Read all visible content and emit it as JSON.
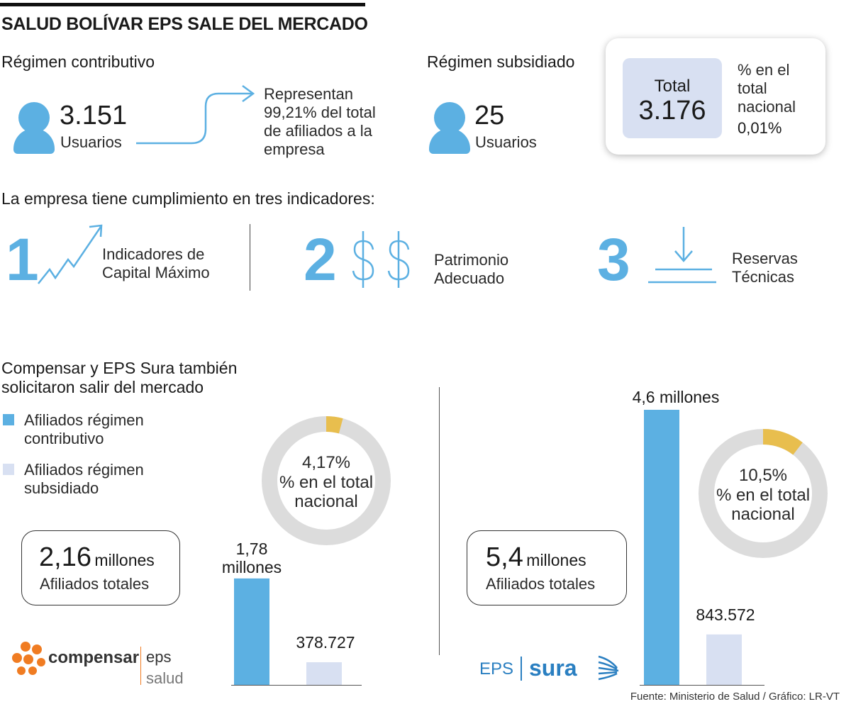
{
  "title": "SALUD BOLÍVAR EPS SALE DEL MERCADO",
  "contributivo": {
    "heading": "Régimen contributivo",
    "number": "3.151",
    "unit": "Usuarios",
    "note": [
      "Representan",
      "99,21% del total",
      "de afiliados a la",
      "empresa"
    ]
  },
  "subsidiado": {
    "heading": "Régimen subsidiado",
    "number": "25",
    "unit": "Usuarios"
  },
  "total_card": {
    "total_label": "Total",
    "total_value": "3.176",
    "pct_label": [
      "% en el",
      "total",
      "nacional"
    ],
    "pct_value": "0,01%"
  },
  "indicators": {
    "heading": "La empresa tiene cumplimiento en tres indicadores:",
    "items": [
      {
        "num": "1",
        "icon": "trend-up-icon",
        "label": [
          "Indicadores de",
          "Capital Máximo"
        ]
      },
      {
        "num": "2",
        "icon": "dollar-icon",
        "label": [
          "Patrimonio",
          "Adecuado"
        ]
      },
      {
        "num": "3",
        "icon": "download-tray-icon",
        "label": [
          "Reservas",
          "Técnicas"
        ]
      }
    ]
  },
  "section2": {
    "heading": [
      "Compensar y EPS Sura también",
      "solicitaron salir del mercado"
    ],
    "legend": [
      {
        "label": [
          "Afiliados régimen",
          "contributivo"
        ],
        "color": "#5cb0e2"
      },
      {
        "label": [
          "Afiliados régimen",
          "subsidiado"
        ],
        "color": "#d8e0f2"
      }
    ]
  },
  "colors": {
    "accent_blue": "#5cb0e2",
    "light_blue": "#d8e0f2",
    "donut_gray": "#dcdcdc",
    "donut_yellow": "#e8be4e",
    "compensar_orange": "#f07c22"
  },
  "chart_data": [
    {
      "type": "bar",
      "company": "Compensar",
      "logo": {
        "brand": "compensar",
        "tag": "eps",
        "sub": "salud"
      },
      "total_value": "2,16",
      "total_unit": "millones",
      "total_caption": "Afiliados totales",
      "categories": [
        "Afiliados régimen contributivo",
        "Afiliados régimen subsidiado"
      ],
      "values": [
        1780000,
        378727
      ],
      "value_labels": [
        "1,78 millones",
        "378.727"
      ],
      "donut": {
        "percent": 4.17,
        "value_label": "4,17%",
        "caption": [
          "% en el total",
          "nacional"
        ]
      }
    },
    {
      "type": "bar",
      "company": "EPS Sura",
      "logo": {
        "brand": "EPS",
        "tag": "sura"
      },
      "total_value": "5,4",
      "total_unit": "millones",
      "total_caption": "Afiliados totales",
      "categories": [
        "Afiliados régimen contributivo",
        "Afiliados régimen subsidiado"
      ],
      "values": [
        4600000,
        843572
      ],
      "value_labels": [
        "4,6 millones",
        "843.572"
      ],
      "donut": {
        "percent": 10.5,
        "value_label": "10,5%",
        "caption": [
          "% en el total",
          "nacional"
        ]
      }
    }
  ],
  "source": "Fuente: Ministerio de Salud / Gráfico: LR-VT"
}
